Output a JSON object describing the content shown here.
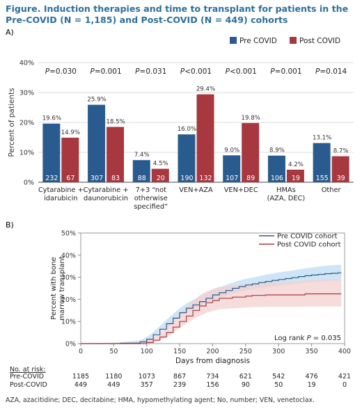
{
  "figure_title": "Figure. Induction therapies and time to transplant for patients in the Pre-COVID (N = 1,185) and Post-COVID (N = 449) cohorts",
  "footnote": "AZA, azacitidine; DEC, decitabine; HMA, hypomethylating agent; No, number; VEN, venetoclax.",
  "colors": {
    "pre": "#2a5b8e",
    "post": "#a8383f",
    "pre_band": "#bfdcf2",
    "post_band": "#f3d0cf"
  },
  "chart_data": [
    {
      "panel_label": "A)",
      "type": "bar",
      "ylabel": "Percent of patients",
      "ylim": [
        0,
        40
      ],
      "yticks": [
        "0%",
        "10%",
        "20%",
        "30%",
        "40%"
      ],
      "grid": true,
      "legend_position": "top-right",
      "categories": [
        [
          "Cytarabine +",
          "idarubicin"
        ],
        [
          "Cytarabine +",
          "daunorubicin"
        ],
        [
          "7+3 “not",
          "otherwise",
          "specified”"
        ],
        [
          "VEN+AZA"
        ],
        [
          "VEN+DEC"
        ],
        [
          "HMAs",
          "(AZA, DEC)"
        ],
        [
          "Other"
        ]
      ],
      "p_values": [
        "0.030",
        "0.001",
        "0.031",
        "<0.001",
        "<0.001",
        "0.001",
        "0.014"
      ],
      "series": [
        {
          "name": "Pre COVID",
          "values": [
            19.6,
            25.9,
            7.4,
            16.0,
            9.0,
            8.9,
            13.1
          ],
          "labels": [
            "19.6%",
            "25.9%",
            "7.4%",
            "16.0%",
            "9.0%",
            "8.9%",
            "13.1%"
          ],
          "n": [
            "232",
            "307",
            "88",
            "190",
            "107",
            "106",
            "155"
          ]
        },
        {
          "name": "Post COVID",
          "values": [
            14.9,
            18.5,
            4.5,
            29.4,
            19.8,
            4.2,
            8.7
          ],
          "labels": [
            "14.9%",
            "18.5%",
            "4.5%",
            "29.4%",
            "19.8%",
            "4.2%",
            "8.7%"
          ],
          "n": [
            "67",
            "83",
            "20",
            "132",
            "89",
            "19",
            "39"
          ]
        }
      ]
    },
    {
      "panel_label": "B)",
      "type": "line",
      "xlabel": "Days from diagnosis",
      "ylabel": [
        "Percent with bone",
        "marrow transplant"
      ],
      "xlim": [
        0,
        400
      ],
      "xticks": [
        0,
        50,
        100,
        150,
        200,
        250,
        300,
        350,
        400
      ],
      "ylim": [
        0,
        50
      ],
      "yticks": [
        "0%",
        "10%",
        "20%",
        "30%",
        "40%",
        "50%"
      ],
      "annotation": "Log rank P = 0.035",
      "legend_position": "top-right",
      "series": [
        {
          "name": "Pre COVID cohort",
          "x": [
            0,
            60,
            90,
            100,
            110,
            120,
            130,
            140,
            150,
            160,
            170,
            180,
            190,
            200,
            210,
            220,
            230,
            240,
            250,
            260,
            270,
            280,
            290,
            300,
            310,
            320,
            330,
            340,
            350,
            360,
            370,
            380,
            390,
            395
          ],
          "y": [
            0,
            0.2,
            0.8,
            2,
            4,
            6.5,
            9,
            11.5,
            14,
            16,
            17.5,
            19,
            20.5,
            22,
            23,
            24,
            25,
            25.8,
            26.5,
            27,
            27.6,
            28.1,
            28.6,
            29,
            29.4,
            29.8,
            30.3,
            30.7,
            31,
            31.3,
            31.6,
            31.8,
            32,
            32
          ],
          "lo": [
            0,
            0,
            0.2,
            1.2,
            3,
            5.2,
            7.5,
            9.8,
            12.2,
            14.1,
            15.5,
            17,
            18.4,
            19.8,
            20.8,
            21.7,
            22.6,
            23.4,
            24,
            24.5,
            25,
            25.4,
            25.8,
            26.2,
            26.5,
            26.8,
            27.2,
            27.5,
            27.8,
            28,
            28.2,
            28.4,
            28.5,
            28.5
          ],
          "hi": [
            0,
            0.5,
            1.5,
            3,
            5.2,
            8,
            10.8,
            13.4,
            16,
            18.1,
            19.7,
            21.2,
            22.8,
            24.4,
            25.4,
            26.5,
            27.6,
            28.5,
            29.3,
            29.8,
            30.5,
            31.1,
            31.7,
            32.2,
            32.6,
            33,
            33.6,
            34,
            34.4,
            34.8,
            35.2,
            35.4,
            35.6,
            35.6
          ]
        },
        {
          "name": "Post COVID cohort",
          "x": [
            0,
            80,
            100,
            110,
            120,
            130,
            140,
            150,
            160,
            170,
            180,
            190,
            200,
            210,
            230,
            250,
            260,
            280,
            300,
            320,
            340,
            350,
            380,
            395
          ],
          "y": [
            0,
            0,
            0.5,
            1.5,
            3,
            5,
            7.5,
            10,
            12.5,
            15,
            17,
            18.5,
            19.5,
            20.5,
            21,
            21.5,
            21.8,
            22,
            22,
            22,
            22.5,
            22.5,
            22.5,
            22.5
          ],
          "lo": [
            0,
            0,
            0,
            0.5,
            1.5,
            3,
            5,
            7,
            9,
            11,
            12.5,
            13.8,
            14.8,
            15.5,
            16,
            16.3,
            16.5,
            16.6,
            16.6,
            16.6,
            16.8,
            16.8,
            16.8,
            16.8
          ],
          "hi": [
            0,
            0.5,
            1.5,
            2.8,
            4.8,
            7.4,
            10.4,
            13.4,
            16.3,
            19.3,
            21.8,
            23.5,
            24.6,
            25.7,
            26.2,
            26.8,
            27.2,
            27.6,
            27.8,
            28,
            28.6,
            28.8,
            29,
            29
          ]
        }
      ],
      "at_risk": {
        "header": "No. at risk:",
        "rows": [
          {
            "label": "Pre-COVID",
            "values": [
              "1185",
              "1180",
              "1073",
              "867",
              "734",
              "621",
              "542",
              "476",
              "421"
            ]
          },
          {
            "label": "Post-COVID",
            "values": [
              "449",
              "449",
              "357",
              "239",
              "156",
              "90",
              "50",
              "19",
              "0"
            ]
          }
        ]
      }
    }
  ]
}
